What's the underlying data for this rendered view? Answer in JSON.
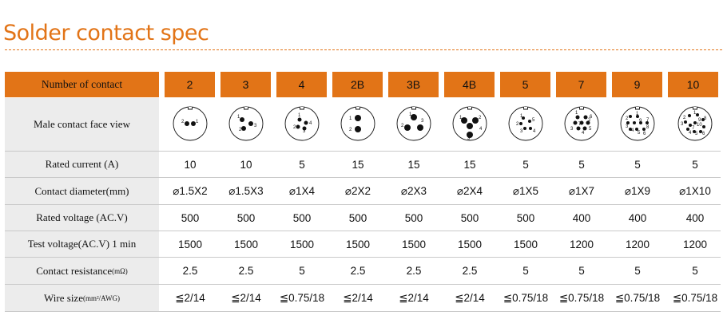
{
  "title": "Solder contact spec",
  "header": {
    "label": "Number of contact",
    "columns": [
      "2",
      "3",
      "4",
      "2B",
      "3B",
      "4B",
      "5",
      "7",
      "9",
      "10"
    ]
  },
  "rows": [
    {
      "key": "face",
      "label": "Male contact face view"
    },
    {
      "key": "current",
      "label": "Rated current (A)",
      "values": [
        "10",
        "10",
        "5",
        "15",
        "15",
        "15",
        "5",
        "5",
        "5",
        "5"
      ]
    },
    {
      "key": "diameter",
      "label": "Contact diameter(mm)",
      "values": [
        "⌀1.5X2",
        "⌀1.5X3",
        "⌀1X4",
        "⌀2X2",
        "⌀2X3",
        "⌀2X4",
        "⌀1X5",
        "⌀1X7",
        "⌀1X9",
        "⌀1X10"
      ]
    },
    {
      "key": "voltage",
      "label": "Rated voltage (AC.V)",
      "values": [
        "500",
        "500",
        "500",
        "500",
        "500",
        "500",
        "500",
        "400",
        "400",
        "400"
      ]
    },
    {
      "key": "test",
      "label": "Test voltage(AC.V) 1 min",
      "values": [
        "1500",
        "1500",
        "1500",
        "1500",
        "1500",
        "1500",
        "1500",
        "1200",
        "1200",
        "1200"
      ]
    },
    {
      "key": "resistance",
      "label": "Contact resistance",
      "label_unit": "(mΩ)",
      "values": [
        "2.5",
        "2.5",
        "5",
        "2.5",
        "2.5",
        "2.5",
        "5",
        "5",
        "5",
        "5"
      ]
    },
    {
      "key": "wire",
      "label": "Wire size",
      "label_unit": "(mm²/AWG)",
      "values": [
        "≦2/14",
        "≦2/14",
        "≦0.75/18",
        "≦2/14",
        "≦2/14",
        "≦2/14",
        "≦0.75/18",
        "≦0.75/18",
        "≦0.75/18",
        "≦0.75/18"
      ]
    }
  ],
  "faces": [
    {
      "labels": [
        "2",
        "1"
      ]
    },
    {
      "labels": [
        "1",
        "3",
        "2"
      ]
    },
    {
      "labels": [
        "1",
        "4",
        "2",
        "3"
      ]
    },
    {
      "labels": [
        "1",
        "2"
      ]
    },
    {
      "labels": [
        "1",
        "3",
        "2"
      ]
    },
    {
      "labels": [
        "1",
        "2",
        "4",
        "3"
      ]
    },
    {
      "labels": [
        "1",
        "5",
        "2",
        "3",
        "4"
      ]
    },
    {
      "labels": [
        "1",
        "2",
        "6",
        "3",
        "5",
        "4",
        "7"
      ]
    },
    {
      "labels": [
        "1",
        "2",
        "9",
        "8",
        "3",
        "4",
        "5",
        "6",
        "7"
      ]
    },
    {
      "labels": [
        "1",
        "2",
        "9",
        "3",
        "10",
        "8",
        "4",
        "5",
        "6",
        "7"
      ]
    }
  ],
  "colors": {
    "accent": "#e27417",
    "label_bg": "#ececec",
    "border": "#c9c9c9"
  }
}
